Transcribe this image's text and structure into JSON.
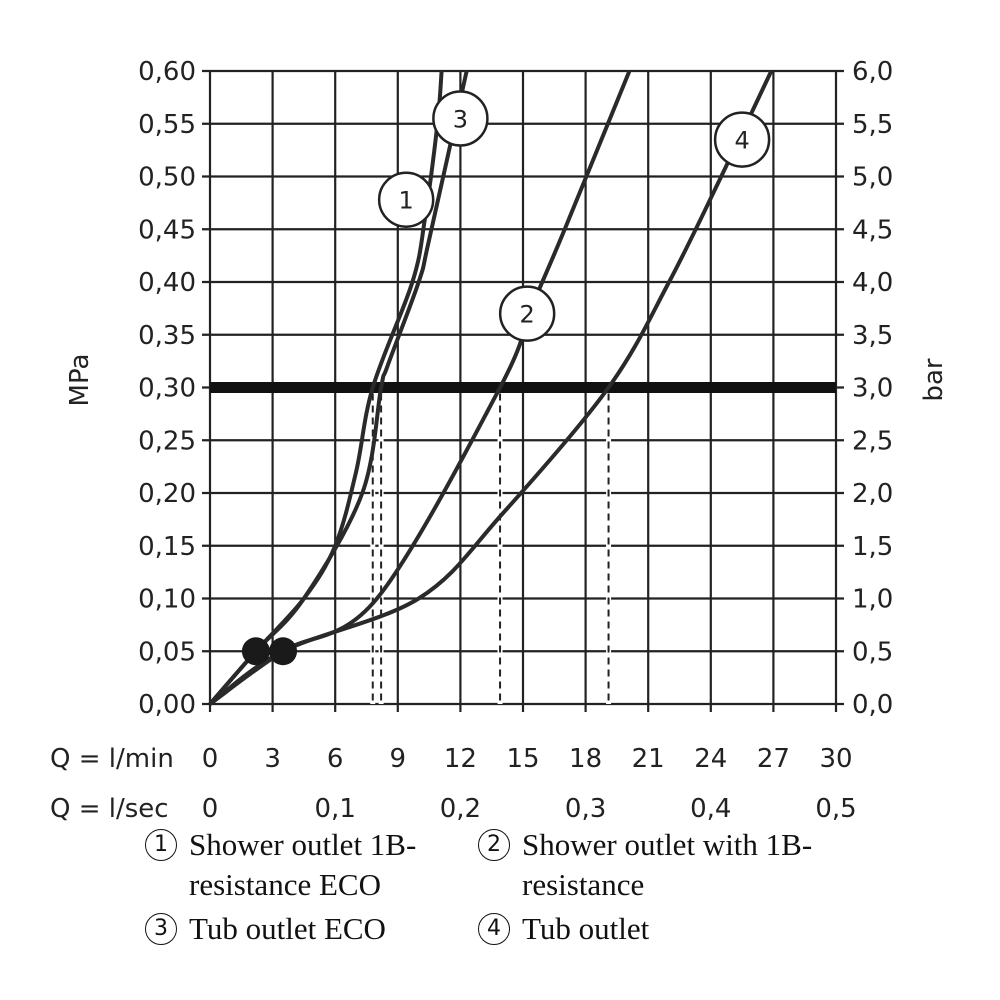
{
  "chart_data": {
    "type": "line",
    "xlabel_lmin": "Q = l/min",
    "xlabel_lsec": "Q = l/sec",
    "ylabel_left": "MPa",
    "ylabel_right": "bar",
    "xlim": [
      0,
      30
    ],
    "ylim": [
      0,
      0.6
    ],
    "grid": true,
    "x_ticks_lmin": [
      "0",
      "3",
      "6",
      "9",
      "12",
      "15",
      "18",
      "21",
      "24",
      "27",
      "30"
    ],
    "x_ticks_lsec": [
      {
        "label": "0",
        "value": 0
      },
      {
        "label": "0,1",
        "value": 6
      },
      {
        "label": "0,2",
        "value": 12
      },
      {
        "label": "0,3",
        "value": 18
      },
      {
        "label": "0,4",
        "value": 24
      },
      {
        "label": "0,5",
        "value": 30
      }
    ],
    "y_ticks_left": [
      "0,00",
      "0,05",
      "0,10",
      "0,15",
      "0,20",
      "0,25",
      "0,30",
      "0,35",
      "0,40",
      "0,45",
      "0,50",
      "0,55",
      "0,60"
    ],
    "y_ticks_right": [
      "0,0",
      "0,5",
      "1,0",
      "1,5",
      "2,0",
      "2,5",
      "3,0",
      "3,5",
      "4,0",
      "4,5",
      "5,0",
      "5,5",
      "6,0"
    ],
    "reference_line": {
      "y": 0.3
    },
    "reference_drops": [
      7.8,
      8.2,
      13.9,
      19.1
    ],
    "minimum_points": [
      {
        "x": 2.2,
        "y": 0.05
      },
      {
        "x": 3.5,
        "y": 0.05
      }
    ],
    "series": [
      {
        "marker": "1",
        "points": [
          [
            0,
            0
          ],
          [
            2.2,
            0.05
          ],
          [
            4.5,
            0.1
          ],
          [
            6,
            0.15
          ],
          [
            7,
            0.22
          ],
          [
            7.8,
            0.3
          ],
          [
            9.7,
            0.4
          ],
          [
            10.3,
            0.46
          ],
          [
            10.9,
            0.55
          ],
          [
            11.1,
            0.6
          ]
        ],
        "marker_at": [
          9.4,
          0.478
        ]
      },
      {
        "marker": "2",
        "points": [
          [
            0,
            0
          ],
          [
            3.5,
            0.05
          ],
          [
            8,
            0.1
          ],
          [
            13.9,
            0.3
          ],
          [
            15.5,
            0.38
          ],
          [
            17,
            0.45
          ],
          [
            20.1,
            0.6
          ]
        ],
        "marker_at": [
          15.2,
          0.37
        ]
      },
      {
        "marker": "3",
        "points": [
          [
            0,
            0
          ],
          [
            2.2,
            0.05
          ],
          [
            4.5,
            0.1
          ],
          [
            7.3,
            0.2
          ],
          [
            8.2,
            0.3
          ],
          [
            8.5,
            0.32
          ],
          [
            10,
            0.4
          ],
          [
            10.5,
            0.44
          ],
          [
            12.3,
            0.6
          ]
        ],
        "marker_at": [
          12.0,
          0.555
        ]
      },
      {
        "marker": "4",
        "points": [
          [
            0,
            0
          ],
          [
            3.5,
            0.05
          ],
          [
            10,
            0.1
          ],
          [
            14,
            0.18
          ],
          [
            19.1,
            0.3
          ],
          [
            22,
            0.4
          ],
          [
            24.5,
            0.5
          ],
          [
            26.9,
            0.6
          ]
        ],
        "marker_at": [
          25.5,
          0.535
        ]
      }
    ]
  },
  "legend": {
    "item1": {
      "num": "1",
      "text": "Shower outlet 1B-resistance ECO"
    },
    "item2": {
      "num": "2",
      "text": "Shower outlet with 1B-resistance"
    },
    "item3": {
      "num": "3",
      "text": "Tub outlet ECO"
    },
    "item4": {
      "num": "4",
      "text": "Tub outlet"
    }
  }
}
